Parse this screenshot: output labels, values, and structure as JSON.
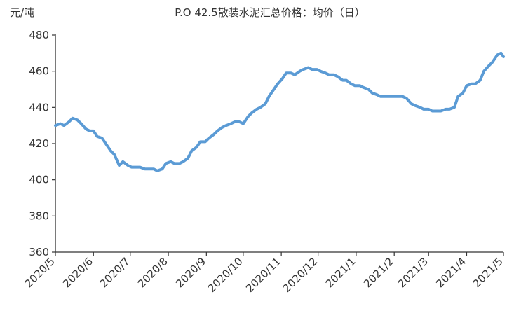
{
  "chart_data": {
    "type": "line",
    "title": "P.O 42.5散装水泥汇总价格：均价（日）",
    "ylabel": "元/吨",
    "xlabel": "",
    "ylim": [
      360,
      480
    ],
    "y_ticks": [
      360,
      380,
      400,
      420,
      440,
      460,
      480
    ],
    "x_ticks": [
      "2020/5",
      "2020/6",
      "2020/7",
      "2020/8",
      "2020/9",
      "2020/10",
      "2020/11",
      "2020/12",
      "2021/1",
      "2021/2",
      "2021/3",
      "2021/4",
      "2021/5"
    ],
    "grid": false,
    "legend": "none",
    "line_color": "#5b9bd5",
    "series": [
      {
        "x": [
          "2020/5/1",
          "2020/5/5",
          "2020/5/8",
          "2020/5/12",
          "2020/5/15",
          "2020/5/19",
          "2020/5/22",
          "2020/5/26",
          "2020/5/29",
          "2020/6/1",
          "2020/6/4",
          "2020/6/8",
          "2020/6/11",
          "2020/6/15",
          "2020/6/18",
          "2020/6/22",
          "2020/6/25",
          "2020/6/29",
          "2020/7/2",
          "2020/7/6",
          "2020/7/9",
          "2020/7/13",
          "2020/7/16",
          "2020/7/20",
          "2020/7/23",
          "2020/7/27",
          "2020/7/30",
          "2020/8/3",
          "2020/8/6",
          "2020/8/10",
          "2020/8/13",
          "2020/8/17",
          "2020/8/20",
          "2020/8/24",
          "2020/8/27",
          "2020/8/31",
          "2020/9/3",
          "2020/9/7",
          "2020/9/10",
          "2020/9/14",
          "2020/9/17",
          "2020/9/21",
          "2020/9/24",
          "2020/9/28",
          "2020/10/1",
          "2020/10/5",
          "2020/10/8",
          "2020/10/12",
          "2020/10/15",
          "2020/10/19",
          "2020/10/22",
          "2020/10/26",
          "2020/10/29",
          "2020/11/2",
          "2020/11/5",
          "2020/11/9",
          "2020/11/12",
          "2020/11/16",
          "2020/11/19",
          "2020/11/23",
          "2020/11/26",
          "2020/11/30",
          "2020/12/3",
          "2020/12/7",
          "2020/12/10",
          "2020/12/14",
          "2020/12/17",
          "2020/12/21",
          "2020/12/24",
          "2020/12/28",
          "2020/12/31",
          "2021/1/4",
          "2021/1/7",
          "2021/1/11",
          "2021/1/14",
          "2021/1/18",
          "2021/1/21",
          "2021/1/25",
          "2021/1/28",
          "2021/2/1",
          "2021/2/4",
          "2021/2/8",
          "2021/2/11",
          "2021/2/15",
          "2021/2/18",
          "2021/2/22",
          "2021/2/25",
          "2021/3/1",
          "2021/3/4",
          "2021/3/8",
          "2021/3/11",
          "2021/3/15",
          "2021/3/18",
          "2021/3/22",
          "2021/3/25",
          "2021/3/29",
          "2021/4/1",
          "2021/4/5",
          "2021/4/8",
          "2021/4/12",
          "2021/4/15",
          "2021/4/19",
          "2021/4/22",
          "2021/4/26",
          "2021/4/29",
          "2021/5/1"
        ],
        "values": [
          430,
          431,
          430,
          432,
          434,
          433,
          431,
          428,
          427,
          427,
          424,
          423,
          420,
          416,
          414,
          408,
          410,
          408,
          407,
          407,
          407,
          406,
          406,
          406,
          405,
          406,
          409,
          410,
          409,
          409,
          410,
          412,
          416,
          418,
          421,
          421,
          423,
          425,
          427,
          429,
          430,
          431,
          432,
          432,
          431,
          435,
          437,
          439,
          440,
          442,
          446,
          450,
          453,
          456,
          459,
          459,
          458,
          460,
          461,
          462,
          461,
          461,
          460,
          459,
          458,
          458,
          457,
          455,
          455,
          453,
          452,
          452,
          451,
          450,
          448,
          447,
          446,
          446,
          446,
          446,
          446,
          446,
          445,
          442,
          441,
          440,
          439,
          439,
          438,
          438,
          438,
          439,
          439,
          440,
          446,
          448,
          452,
          453,
          453,
          455,
          460,
          463,
          465,
          469,
          470,
          468
        ]
      }
    ]
  }
}
